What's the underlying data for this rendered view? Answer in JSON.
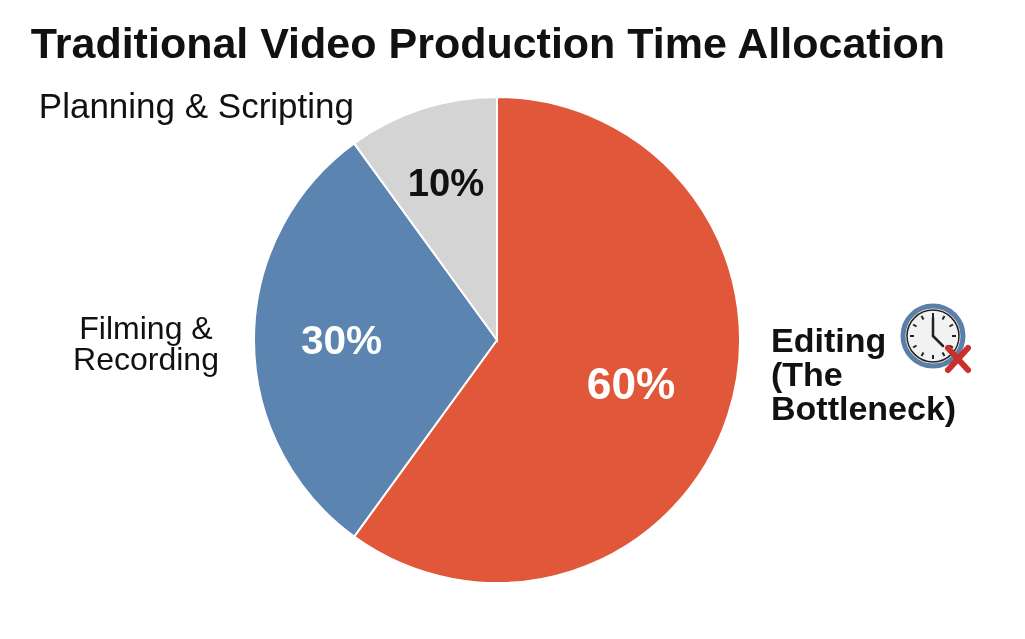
{
  "chart_data": {
    "type": "pie",
    "title": "Traditional Video Production Time Allocation",
    "categories": [
      "Editing (The Bottleneck)",
      "Filming & Recording",
      "Planning & Scripting"
    ],
    "values": [
      60,
      30,
      10
    ],
    "colors": [
      "#e0573a",
      "#5b84b1",
      "#d4d4d4"
    ],
    "value_labels": [
      "60%",
      "30%",
      "10%"
    ],
    "legend": false
  }
}
